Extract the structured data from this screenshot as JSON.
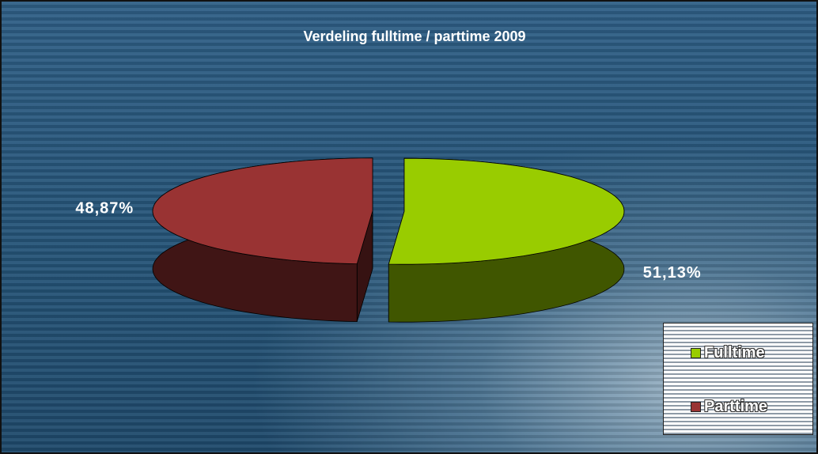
{
  "chart_data": {
    "type": "pie",
    "title": "Verdeling fulltime / parttime 2009",
    "categories": [
      "Fulltime",
      "Parttime"
    ],
    "values": [
      51.13,
      48.87
    ],
    "value_labels": [
      "51,13%",
      "48,87%"
    ],
    "colors": [
      "#99cc00",
      "#993333"
    ],
    "legend": "lower right"
  }
}
